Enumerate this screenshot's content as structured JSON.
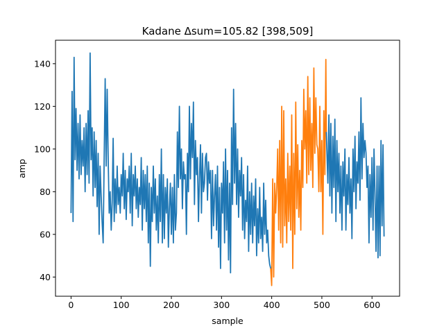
{
  "chart_data": {
    "type": "line",
    "title": "Kadane Δsum=105.82 [398,509]",
    "xlabel": "sample",
    "ylabel": "amp",
    "xlim": [
      -31,
      655
    ],
    "ylim": [
      31,
      151
    ],
    "xticks": [
      0,
      100,
      200,
      300,
      400,
      500,
      600
    ],
    "yticks": [
      40,
      60,
      80,
      100,
      120,
      140
    ],
    "grid": false,
    "highlight_range": [
      398,
      509
    ],
    "series": [
      {
        "color": "#1f77b4",
        "points": [
          [
            0,
            70
          ],
          [
            2,
            127
          ],
          [
            4,
            66
          ],
          [
            6,
            143
          ],
          [
            8,
            95
          ],
          [
            10,
            119
          ],
          [
            12,
            90
          ],
          [
            14,
            112
          ],
          [
            16,
            86
          ],
          [
            18,
            116
          ],
          [
            20,
            88
          ],
          [
            22,
            104
          ],
          [
            24,
            92
          ],
          [
            26,
            110
          ],
          [
            28,
            80
          ],
          [
            30,
            112
          ],
          [
            32,
            88
          ],
          [
            34,
            118
          ],
          [
            36,
            84
          ],
          [
            38,
            145
          ],
          [
            40,
            95
          ],
          [
            42,
            110
          ],
          [
            44,
            78
          ],
          [
            46,
            108
          ],
          [
            48,
            82
          ],
          [
            50,
            104
          ],
          [
            52,
            73
          ],
          [
            54,
            98
          ],
          [
            56,
            60
          ],
          [
            58,
            92
          ],
          [
            60,
            78
          ],
          [
            62,
            66
          ],
          [
            64,
            56
          ],
          [
            66,
            94
          ],
          [
            68,
            133
          ],
          [
            70,
            92
          ],
          [
            72,
            128
          ],
          [
            74,
            96
          ],
          [
            76,
            70
          ],
          [
            78,
            80
          ],
          [
            80,
            62
          ],
          [
            82,
            75
          ],
          [
            84,
            105
          ],
          [
            86,
            66
          ],
          [
            88,
            86
          ],
          [
            90,
            70
          ],
          [
            92,
            92
          ],
          [
            94,
            74
          ],
          [
            96,
            82
          ],
          [
            98,
            70
          ],
          [
            100,
            88
          ],
          [
            102,
            78
          ],
          [
            104,
            98
          ],
          [
            106,
            72
          ],
          [
            108,
            90
          ],
          [
            110,
            67
          ],
          [
            112,
            86
          ],
          [
            114,
            80
          ],
          [
            116,
            92
          ],
          [
            118,
            70
          ],
          [
            120,
            98
          ],
          [
            122,
            64
          ],
          [
            124,
            88
          ],
          [
            126,
            78
          ],
          [
            128,
            92
          ],
          [
            130,
            72
          ],
          [
            132,
            86
          ],
          [
            134,
            68
          ],
          [
            136,
            82
          ],
          [
            138,
            74
          ],
          [
            140,
            96
          ],
          [
            142,
            62
          ],
          [
            144,
            90
          ],
          [
            146,
            72
          ],
          [
            148,
            88
          ],
          [
            150,
            66
          ],
          [
            152,
            92
          ],
          [
            154,
            56
          ],
          [
            156,
            84
          ],
          [
            158,
            45
          ],
          [
            160,
            82
          ],
          [
            162,
            66
          ],
          [
            164,
            92
          ],
          [
            166,
            70
          ],
          [
            168,
            86
          ],
          [
            170,
            62
          ],
          [
            172,
            78
          ],
          [
            174,
            56
          ],
          [
            176,
            88
          ],
          [
            178,
            66
          ],
          [
            180,
            100
          ],
          [
            182,
            56
          ],
          [
            184,
            88
          ],
          [
            186,
            58
          ],
          [
            188,
            82
          ],
          [
            190,
            70
          ],
          [
            192,
            86
          ],
          [
            194,
            54
          ],
          [
            196,
            72
          ],
          [
            198,
            84
          ],
          [
            200,
            60
          ],
          [
            202,
            82
          ],
          [
            204,
            56
          ],
          [
            206,
            88
          ],
          [
            208,
            62
          ],
          [
            210,
            70
          ],
          [
            212,
            108
          ],
          [
            214,
            82
          ],
          [
            216,
            120
          ],
          [
            218,
            86
          ],
          [
            220,
            100
          ],
          [
            222,
            72
          ],
          [
            224,
            94
          ],
          [
            226,
            86
          ],
          [
            228,
            88
          ],
          [
            230,
            60
          ],
          [
            232,
            98
          ],
          [
            234,
            80
          ],
          [
            236,
            120
          ],
          [
            238,
            86
          ],
          [
            240,
            112
          ],
          [
            242,
            96
          ],
          [
            244,
            122
          ],
          [
            246,
            74
          ],
          [
            248,
            104
          ],
          [
            250,
            88
          ],
          [
            252,
            96
          ],
          [
            254,
            66
          ],
          [
            256,
            86
          ],
          [
            258,
            102
          ],
          [
            260,
            70
          ],
          [
            262,
            98
          ],
          [
            264,
            80
          ],
          [
            266,
            84
          ],
          [
            268,
            96
          ],
          [
            270,
            98
          ],
          [
            272,
            76
          ],
          [
            274,
            94
          ],
          [
            276,
            84
          ],
          [
            278,
            90
          ],
          [
            280,
            58
          ],
          [
            282,
            90
          ],
          [
            284,
            64
          ],
          [
            286,
            78
          ],
          [
            288,
            88
          ],
          [
            290,
            62
          ],
          [
            292,
            92
          ],
          [
            294,
            54
          ],
          [
            296,
            82
          ],
          [
            298,
            44
          ],
          [
            300,
            84
          ],
          [
            302,
            70
          ],
          [
            304,
            94
          ],
          [
            306,
            56
          ],
          [
            308,
            100
          ],
          [
            310,
            62
          ],
          [
            312,
            90
          ],
          [
            314,
            48
          ],
          [
            316,
            84
          ],
          [
            318,
            42
          ],
          [
            320,
            110
          ],
          [
            322,
            74
          ],
          [
            324,
            128
          ],
          [
            326,
            84
          ],
          [
            328,
            112
          ],
          [
            330,
            74
          ],
          [
            332,
            100
          ],
          [
            334,
            68
          ],
          [
            336,
            90
          ],
          [
            338,
            78
          ],
          [
            340,
            96
          ],
          [
            342,
            62
          ],
          [
            344,
            88
          ],
          [
            346,
            58
          ],
          [
            348,
            76
          ],
          [
            350,
            66
          ],
          [
            352,
            92
          ],
          [
            354,
            52
          ],
          [
            356,
            80
          ],
          [
            358,
            60
          ],
          [
            360,
            84
          ],
          [
            362,
            56
          ],
          [
            364,
            78
          ],
          [
            366,
            64
          ],
          [
            368,
            86
          ],
          [
            370,
            50
          ],
          [
            372,
            72
          ],
          [
            374,
            56
          ],
          [
            376,
            82
          ],
          [
            378,
            58
          ],
          [
            380,
            68
          ],
          [
            382,
            52
          ],
          [
            384,
            84
          ],
          [
            386,
            60
          ],
          [
            388,
            76
          ],
          [
            390,
            56
          ],
          [
            392,
            62
          ],
          [
            394,
            50
          ],
          [
            396,
            46
          ],
          [
            398,
            44
          ]
        ]
      },
      {
        "color": "#ff7f0e",
        "points": [
          [
            398,
            44
          ],
          [
            400,
            36
          ],
          [
            402,
            86
          ],
          [
            404,
            40
          ],
          [
            406,
            84
          ],
          [
            408,
            70
          ],
          [
            410,
            82
          ],
          [
            412,
            100
          ],
          [
            414,
            62
          ],
          [
            416,
            104
          ],
          [
            418,
            56
          ],
          [
            420,
            120
          ],
          [
            422,
            54
          ],
          [
            424,
            118
          ],
          [
            426,
            64
          ],
          [
            428,
            86
          ],
          [
            430,
            56
          ],
          [
            432,
            98
          ],
          [
            434,
            66
          ],
          [
            436,
            92
          ],
          [
            438,
            62
          ],
          [
            440,
            116
          ],
          [
            442,
            44
          ],
          [
            444,
            98
          ],
          [
            446,
            60
          ],
          [
            448,
            122
          ],
          [
            450,
            72
          ],
          [
            452,
            102
          ],
          [
            454,
            68
          ],
          [
            456,
            90
          ],
          [
            458,
            62
          ],
          [
            460,
            104
          ],
          [
            462,
            82
          ],
          [
            464,
            128
          ],
          [
            466,
            100
          ],
          [
            468,
            118
          ],
          [
            470,
            84
          ],
          [
            472,
            134
          ],
          [
            474,
            88
          ],
          [
            476,
            124
          ],
          [
            478,
            90
          ],
          [
            480,
            112
          ],
          [
            482,
            82
          ],
          [
            484,
            138
          ],
          [
            486,
            98
          ],
          [
            488,
            124
          ],
          [
            490,
            102
          ],
          [
            492,
            100
          ],
          [
            494,
            80
          ],
          [
            496,
            120
          ],
          [
            498,
            80
          ],
          [
            500,
            104
          ],
          [
            502,
            60
          ],
          [
            504,
            118
          ],
          [
            506,
            88
          ],
          [
            508,
            142
          ],
          [
            509,
            108
          ]
        ]
      },
      {
        "color": "#1f77b4",
        "points": [
          [
            509,
            108
          ],
          [
            512,
            84
          ],
          [
            514,
            116
          ],
          [
            516,
            78
          ],
          [
            518,
            112
          ],
          [
            520,
            70
          ],
          [
            522,
            106
          ],
          [
            524,
            82
          ],
          [
            526,
            114
          ],
          [
            528,
            66
          ],
          [
            530,
            104
          ],
          [
            532,
            80
          ],
          [
            534,
            98
          ],
          [
            536,
            70
          ],
          [
            538,
            92
          ],
          [
            540,
            62
          ],
          [
            542,
            94
          ],
          [
            544,
            78
          ],
          [
            546,
            100
          ],
          [
            548,
            62
          ],
          [
            550,
            88
          ],
          [
            552,
            74
          ],
          [
            554,
            96
          ],
          [
            556,
            70
          ],
          [
            558,
            86
          ],
          [
            560,
            58
          ],
          [
            562,
            100
          ],
          [
            564,
            80
          ],
          [
            566,
            106
          ],
          [
            568,
            72
          ],
          [
            570,
            94
          ],
          [
            572,
            84
          ],
          [
            574,
            108
          ],
          [
            576,
            76
          ],
          [
            578,
            124
          ],
          [
            580,
            86
          ],
          [
            582,
            112
          ],
          [
            584,
            96
          ],
          [
            586,
            104
          ],
          [
            588,
            98
          ],
          [
            590,
            82
          ],
          [
            592,
            92
          ],
          [
            594,
            56
          ],
          [
            596,
            88
          ],
          [
            598,
            68
          ],
          [
            600,
            96
          ],
          [
            602,
            62
          ],
          [
            604,
            100
          ],
          [
            606,
            78
          ],
          [
            608,
            52
          ],
          [
            610,
            92
          ],
          [
            612,
            49
          ],
          [
            614,
            92
          ],
          [
            616,
            50
          ],
          [
            618,
            104
          ],
          [
            620,
            64
          ],
          [
            622,
            102
          ],
          [
            624,
            59
          ]
        ]
      }
    ]
  }
}
